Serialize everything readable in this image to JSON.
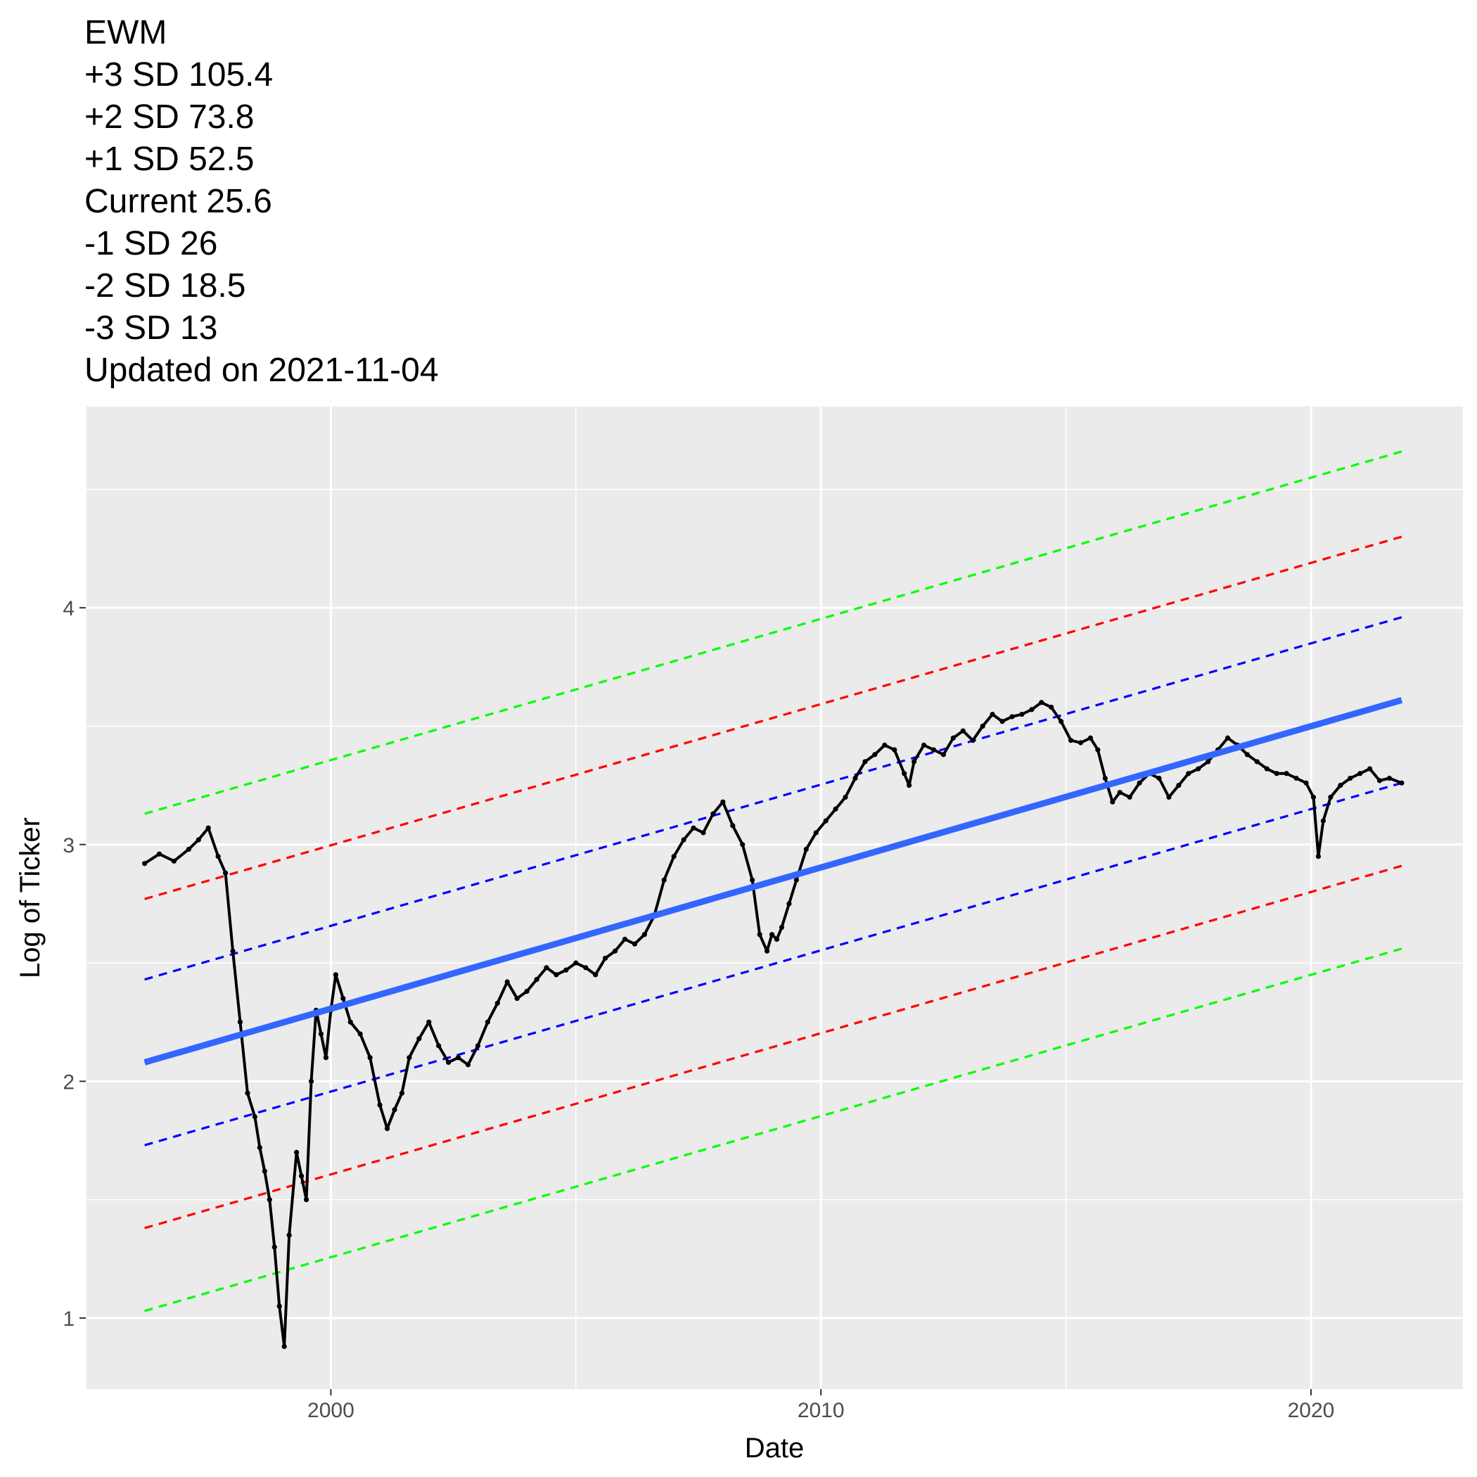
{
  "title_lines": [
    "EWM",
    "+3 SD 105.4",
    "+2 SD 73.8",
    "+1 SD 52.5",
    "Current 25.6",
    "-1 SD 26",
    "-2 SD 18.5",
    "-3 SD 13",
    "Updated on 2021-11-04"
  ],
  "chart_data": {
    "type": "scatter",
    "xlabel": "Date",
    "ylabel": "Log of Ticker",
    "xlim": [
      1995.0,
      2023.1
    ],
    "ylim": [
      0.7,
      4.85
    ],
    "x_ticks": [
      2000,
      2010,
      2020
    ],
    "x_tick_labels": [
      "2000",
      "2010",
      "2020"
    ],
    "y_ticks": [
      1,
      2,
      3,
      4
    ],
    "y_tick_labels": [
      "1",
      "2",
      "3",
      "4"
    ],
    "grid": true,
    "legend": "none",
    "background": "#ebebeb",
    "trend": {
      "color": "#3366ff",
      "x": [
        1996.2,
        2021.85
      ],
      "y": [
        2.08,
        3.61
      ]
    },
    "bands": [
      {
        "label": "+3 SD",
        "color": "#00ff00",
        "x": [
          1996.2,
          2021.85
        ],
        "y": [
          3.13,
          4.66
        ]
      },
      {
        "label": "+2 SD",
        "color": "#ff0000",
        "x": [
          1996.2,
          2021.85
        ],
        "y": [
          2.77,
          4.3
        ]
      },
      {
        "label": "+1 SD",
        "color": "#0000ff",
        "x": [
          1996.2,
          2021.85
        ],
        "y": [
          2.43,
          3.96
        ]
      },
      {
        "label": "-1 SD",
        "color": "#0000ff",
        "x": [
          1996.2,
          2021.85
        ],
        "y": [
          1.73,
          3.26
        ]
      },
      {
        "label": "-2 SD",
        "color": "#ff0000",
        "x": [
          1996.2,
          2021.85
        ],
        "y": [
          1.38,
          2.91
        ]
      },
      {
        "label": "-3 SD",
        "color": "#00ff00",
        "x": [
          1996.2,
          2021.85
        ],
        "y": [
          1.03,
          2.56
        ]
      }
    ],
    "series": [
      {
        "color": "#000000",
        "x": [
          1996.2,
          1996.5,
          1996.8,
          1997.1,
          1997.3,
          1997.5,
          1997.7,
          1997.85,
          1998.0,
          1998.15,
          1998.3,
          1998.45,
          1998.55,
          1998.65,
          1998.75,
          1998.85,
          1998.95,
          1999.05,
          1999.15,
          1999.3,
          1999.4,
          1999.5,
          1999.6,
          1999.7,
          1999.8,
          1999.9,
          2000.0,
          2000.1,
          2000.25,
          2000.4,
          2000.6,
          2000.8,
          2001.0,
          2001.15,
          2001.3,
          2001.45,
          2001.6,
          2001.8,
          2002.0,
          2002.2,
          2002.4,
          2002.6,
          2002.8,
          2003.0,
          2003.2,
          2003.4,
          2003.6,
          2003.8,
          2004.0,
          2004.2,
          2004.4,
          2004.6,
          2004.8,
          2005.0,
          2005.2,
          2005.4,
          2005.6,
          2005.8,
          2006.0,
          2006.2,
          2006.4,
          2006.6,
          2006.8,
          2007.0,
          2007.2,
          2007.4,
          2007.6,
          2007.8,
          2008.0,
          2008.2,
          2008.4,
          2008.6,
          2008.75,
          2008.9,
          2009.0,
          2009.1,
          2009.2,
          2009.35,
          2009.5,
          2009.7,
          2009.9,
          2010.1,
          2010.3,
          2010.5,
          2010.7,
          2010.9,
          2011.1,
          2011.3,
          2011.5,
          2011.7,
          2011.8,
          2011.9,
          2012.1,
          2012.3,
          2012.5,
          2012.7,
          2012.9,
          2013.1,
          2013.3,
          2013.5,
          2013.7,
          2013.9,
          2014.1,
          2014.3,
          2014.5,
          2014.7,
          2014.9,
          2015.1,
          2015.3,
          2015.5,
          2015.65,
          2015.8,
          2015.95,
          2016.1,
          2016.3,
          2016.5,
          2016.7,
          2016.9,
          2017.1,
          2017.3,
          2017.5,
          2017.7,
          2017.9,
          2018.1,
          2018.3,
          2018.5,
          2018.7,
          2018.9,
          2019.1,
          2019.3,
          2019.5,
          2019.7,
          2019.9,
          2020.05,
          2020.15,
          2020.25,
          2020.4,
          2020.6,
          2020.8,
          2021.0,
          2021.2,
          2021.4,
          2021.6,
          2021.85
        ],
        "y": [
          2.92,
          2.96,
          2.93,
          2.98,
          3.02,
          3.07,
          2.95,
          2.88,
          2.55,
          2.25,
          1.95,
          1.85,
          1.72,
          1.62,
          1.5,
          1.3,
          1.05,
          0.88,
          1.35,
          1.7,
          1.6,
          1.5,
          2.0,
          2.3,
          2.2,
          2.1,
          2.3,
          2.45,
          2.35,
          2.25,
          2.2,
          2.1,
          1.9,
          1.8,
          1.88,
          1.95,
          2.1,
          2.18,
          2.25,
          2.15,
          2.08,
          2.1,
          2.07,
          2.15,
          2.25,
          2.33,
          2.42,
          2.35,
          2.38,
          2.43,
          2.48,
          2.45,
          2.47,
          2.5,
          2.48,
          2.45,
          2.52,
          2.55,
          2.6,
          2.58,
          2.62,
          2.7,
          2.85,
          2.95,
          3.02,
          3.07,
          3.05,
          3.13,
          3.18,
          3.08,
          3.0,
          2.85,
          2.62,
          2.55,
          2.62,
          2.6,
          2.65,
          2.75,
          2.85,
          2.98,
          3.05,
          3.1,
          3.15,
          3.2,
          3.28,
          3.35,
          3.38,
          3.42,
          3.4,
          3.3,
          3.25,
          3.35,
          3.42,
          3.4,
          3.38,
          3.45,
          3.48,
          3.44,
          3.5,
          3.55,
          3.52,
          3.54,
          3.55,
          3.57,
          3.6,
          3.58,
          3.52,
          3.44,
          3.43,
          3.45,
          3.4,
          3.28,
          3.18,
          3.22,
          3.2,
          3.26,
          3.3,
          3.28,
          3.2,
          3.25,
          3.3,
          3.32,
          3.35,
          3.4,
          3.45,
          3.42,
          3.38,
          3.35,
          3.32,
          3.3,
          3.3,
          3.28,
          3.26,
          3.2,
          2.95,
          3.1,
          3.2,
          3.25,
          3.28,
          3.3,
          3.32,
          3.27,
          3.28,
          3.26
        ]
      }
    ]
  }
}
